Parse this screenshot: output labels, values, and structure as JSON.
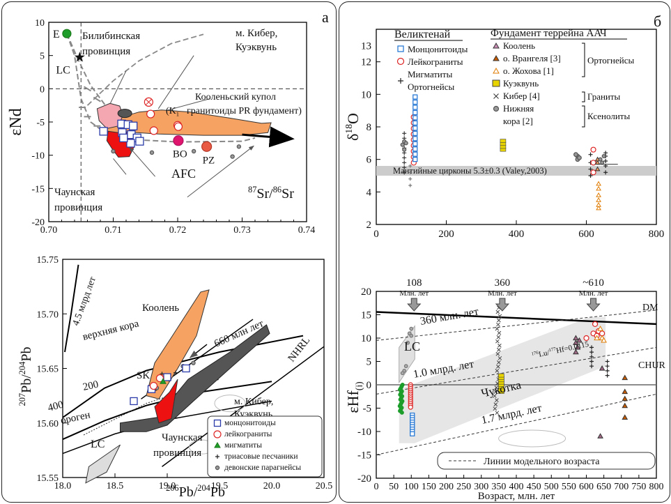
{
  "chart_data": [
    {
      "id": "sr_nd",
      "type": "scatter",
      "panel_letter": "а",
      "xlim": [
        0.7,
        0.74
      ],
      "ylim": [
        -20,
        10
      ],
      "xticks": [
        "0.70",
        "0.71",
        "0.72",
        "0.73",
        "0.74"
      ],
      "yticks": [
        "10",
        "5",
        "0",
        "-5",
        "-10",
        "-15",
        "-20"
      ],
      "ylabel": "εNd",
      "xlabel_parts": [
        "87",
        "Sr/",
        "86",
        "Sr"
      ],
      "labels": {
        "E": "E",
        "LC": "LC",
        "bilib": [
          "Билибинская",
          "провинция"
        ],
        "kiber": [
          "м. Кибер,",
          "Куэквунь"
        ],
        "koolen": [
          "Кооленьский купол",
          "гранитоиды PR фундамент)"
        ],
        "k1": "(K",
        "k1_sub": "1",
        "bo": "BO",
        "pz": "PZ",
        "afc": "AFC",
        "chaun": [
          "Чаунская",
          "провинция"
        ]
      },
      "points": {
        "E": [
          0.7028,
          8.3
        ],
        "LC": [
          0.7048,
          4.8
        ],
        "BO": [
          0.7201,
          -7.8
        ],
        "PZ": [
          0.7245,
          -8.7
        ],
        "monzonitoids": [
          [
            0.7085,
            -6.4
          ],
          [
            0.7113,
            -5.3
          ],
          [
            0.7123,
            -5.4
          ],
          [
            0.7131,
            -5.6
          ],
          [
            0.7114,
            -6.6
          ],
          [
            0.7128,
            -6.9
          ],
          [
            0.7137,
            -7.4
          ],
          [
            0.7141,
            -7.9
          ],
          [
            0.7127,
            -8.2
          ],
          [
            0.7116,
            -7.4
          ]
        ],
        "leucogranites": [
          [
            0.7158,
            -3.8
          ],
          [
            0.7163,
            -6.3
          ],
          [
            0.72,
            -5.5
          ],
          [
            0.7201,
            -5.7
          ]
        ],
        "migmatites": [
          [
            0.7155,
            -2.0
          ]
        ],
        "ortho_small": [
          [
            0.71,
            -9.4
          ],
          [
            0.716,
            -9.6
          ],
          [
            0.7225,
            -9.4
          ],
          [
            0.7285,
            -10.2
          ],
          [
            0.7295,
            -8.7
          ]
        ]
      }
    },
    {
      "id": "pb_pb",
      "type": "scatter",
      "xlim": [
        18.0,
        20.5
      ],
      "ylim": [
        15.55,
        15.75
      ],
      "xticks": [
        "18.0",
        "18.5",
        "19.0",
        "19.5",
        "20.0",
        "20.5"
      ],
      "yticks": [
        "15.55",
        "15.60",
        "15.65",
        "15.70",
        "15.75"
      ],
      "xlabel_parts": [
        "206",
        "Pb/",
        "204",
        "Pb"
      ],
      "ylabel_parts": [
        "207",
        "Pb/",
        "204",
        "Pb"
      ],
      "labels": {
        "g45": "4.5 млрд лет",
        "upper": "верхняя кора",
        "sk": "SK",
        "n400": "400",
        "n200": "200",
        "orogen": "ороген",
        "lc": "LC",
        "koolen": "Коолень",
        "m660": "660 млн лет",
        "kiber": [
          "м. Кибер,",
          "Куэквунь"
        ],
        "nhrl": "NHRL",
        "chaun": [
          "Чаунская",
          "провинция"
        ]
      },
      "legend": [
        "монцонитоиды",
        "лейкограниты",
        "мигматиты",
        "триасовые песчаники",
        "девонские парагнейсы"
      ],
      "points": {
        "monzonitoids": [
          [
            18.68,
            15.62
          ],
          [
            18.85,
            15.631
          ],
          [
            19.0,
            15.642
          ],
          [
            19.18,
            15.65
          ]
        ],
        "leucogranites": [
          [
            18.87,
            15.634
          ],
          [
            18.93,
            15.641
          ]
        ],
        "migmatites": [
          [
            18.96,
            15.638
          ]
        ]
      }
    },
    {
      "id": "delta_o",
      "type": "scatter",
      "panel_letter": "б",
      "xlim": [
        0,
        800
      ],
      "ylim": [
        2,
        14
      ],
      "xticks": [
        "0",
        "200",
        "400",
        "600",
        "800"
      ],
      "yticks": [
        "2",
        "4",
        "6",
        "8",
        "10",
        "12"
      ],
      "y_top_label": "13",
      "ylabel_parts": [
        "δ",
        "18",
        "O"
      ],
      "band": {
        "y": [
          5.0,
          5.6
        ],
        "label": "Мантийные цирконы 5.3±0.3 (Valey,2003)"
      },
      "legend_left_title": "Великтенай",
      "legend_left": [
        "Монцонитоиды",
        "Лейкограниты",
        "Мигматиты",
        "Ортогнейсы"
      ],
      "legend_right_title": "Фундамент террейна ААЧ",
      "legend_right": [
        "Коолень",
        "о. Врангеля [3]",
        "о. Жохова [1]",
        "Куэквунь",
        "Кибер [4]",
        "Нижняя",
        "кора [2]"
      ],
      "groups": [
        "Ортогнейсы",
        "Граниты",
        "Ксенолиты"
      ]
    },
    {
      "id": "ehf",
      "type": "scatter",
      "xlim": [
        0,
        800
      ],
      "ylim": [
        -20,
        20
      ],
      "xticks": [
        "0",
        "50",
        "100",
        "150",
        "200",
        "250",
        "300",
        "350",
        "400",
        "450",
        "500",
        "550",
        "600",
        "650",
        "700",
        "750",
        "800"
      ],
      "yticks": [
        "20",
        "15",
        "10",
        "5",
        "0",
        "-5",
        "-10",
        "-15",
        "-20"
      ],
      "xlabel": "Возраст, млн. лет",
      "ylabel_parts": [
        "εHf",
        "(i)"
      ],
      "arrows": [
        {
          "age": "108",
          "unit": "Млн. лет",
          "x": 108
        },
        {
          "age": "360",
          "unit": "Млн. лет",
          "x": 360
        },
        {
          "age": "~610",
          "unit": "Млн. лет",
          "x": 620
        }
      ],
      "labels": {
        "dm": "DM",
        "chur": "CHUR",
        "lc": "LC",
        "m360": "360 млн. лет",
        "g10": "1.0 млрд. лет",
        "g17": "1.7 млрд. лет",
        "chukotka": "Чукотка",
        "lu_a": "176",
        "lu_b": "Lu/",
        "lu_c": "177",
        "lu_d": "Hf=0.0115",
        "legend": "Линии модельного возраста"
      }
    }
  ]
}
